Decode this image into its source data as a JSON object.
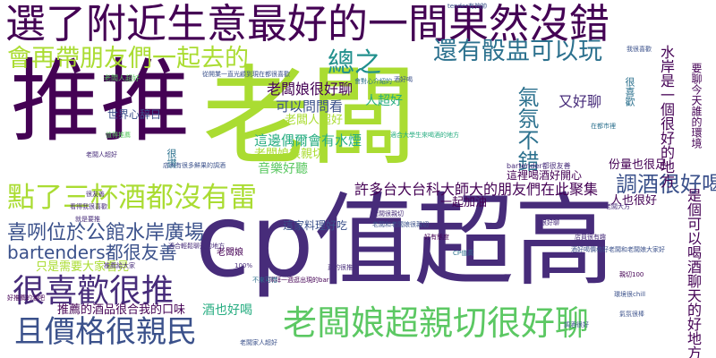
{
  "palette": {
    "deep_purple": "#440154",
    "purple": "#472c7a",
    "indigo": "#3b518b",
    "steel_blue": "#2c718e",
    "teal": "#21908d",
    "green": "#27ad81",
    "light_green": "#5cc863",
    "yellow_green": "#aadc32",
    "yellow": "#fde725"
  },
  "words": {
    "w1": "推推",
    "w2": "老闆",
    "w3": "cp值超高",
    "w4": "選了附近生意最好的一間果然沒錯",
    "w5": "會再帶朋友們一起去的",
    "w6": "總之",
    "w7": "還有骰盅可以玩",
    "w8": "點了三杯酒都沒有雷",
    "w9": "且價格很親民",
    "w10": "老闆娘超親切很好聊",
    "w11": "很喜歡很推",
    "w12": "喜咧位於公館水岸廣場",
    "w13": "bartenders都很友善",
    "w14": "許多台大台科大師大的朋友們在此聚集",
    "w15": "老闆娘很好聊",
    "w16": "可以問問看",
    "w17": "人超好",
    "w18": "又好聊",
    "w19": "氣氛不錯",
    "w20": "調酒很好喝",
    "w21": "是個可以喝酒聊天的好地方",
    "w22": "一起加油",
    "w23": "這邊偶爾會有水煙",
    "w24": "音樂好聽",
    "w25": "老闆娘很親切",
    "w26": "老闆人超好",
    "w27": "世界心辞日",
    "w28": "這家料理好吃",
    "w29": "只是需要大家看見",
    "w30": "推薦的酒品很合我的口味",
    "w31": "酒也好喝",
    "w32": "這裡喝酒好開心",
    "w33": "份量也很足",
    "w34": "人也很好",
    "w35": "水岸是一個很好的地方",
    "w36": "要聊今天誰的環境",
    "w37": "很喜歡",
    "w38": "很讚",
    "w39": "老闆娘",
    "w40": "老闆人超好",
    "w41": "tender有夠帥",
    "w42": "從開業一直光顧到現在都很喜歡",
    "w43": "會對心介紹的",
    "w44": "酒好喝",
    "w45": "適合大學生來喝酒的地方",
    "w46": "老闆很親切",
    "w47": "老闆大方",
    "w48": "bartender都很友善",
    "w49": "老闆和老闆娘很親切",
    "w50": "好有態度",
    "w51": "CP值高",
    "w52": "酒好喝價格好老闆和老闆娘大家好",
    "w53": "環境很chill",
    "w54": "親切100",
    "w55": "真的很推",
    "w56": "擇拜一週逛出現的bar",
    "w57": "在都市裡",
    "w58": "看得我很喜歡",
    "w59": "就是要推",
    "w60": "老闆人超好",
    "w61": "老闆家人超好",
    "w62": "好推薦的酒吧",
    "w63": "適合輕鬆聊天的地方",
    "w64": "店內有很多鮮果的調酒",
    "w65": "推薦給大家",
    "w66": "不來可惜",
    "w67": "100%",
    "w68": "我很喜歡",
    "w69": "很好聊",
    "w70": "店員很有趣",
    "w71": "值得推薦",
    "w72": "調酒很好",
    "w73": "氣氛很棒",
    "w74": "很友善"
  }
}
